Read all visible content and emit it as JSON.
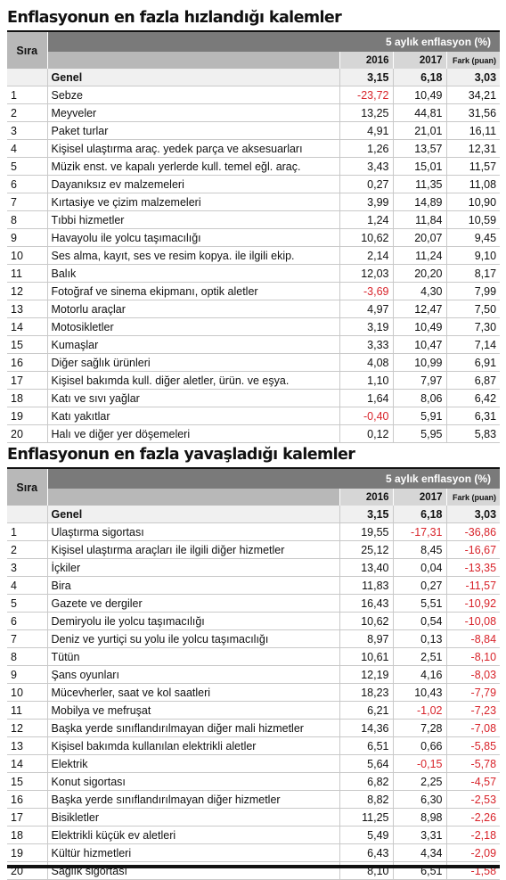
{
  "tables": [
    {
      "title": "Enflasyonun en fazla hızlandığı kalemler",
      "sira_header": "Sıra",
      "group_header": "5 aylık enflasyon (%)",
      "col_2016": "2016",
      "col_2017": "2017",
      "col_fark": "Fark (puan)",
      "genel": {
        "name": "Genel",
        "v2016": "3,15",
        "v2017": "6,18",
        "fark": "3,03"
      },
      "rows": [
        {
          "sira": "1",
          "name": "Sebze",
          "v2016": "-23,72",
          "v2017": "10,49",
          "fark": "34,21"
        },
        {
          "sira": "2",
          "name": "Meyveler",
          "v2016": "13,25",
          "v2017": "44,81",
          "fark": "31,56"
        },
        {
          "sira": "3",
          "name": "Paket turlar",
          "v2016": "4,91",
          "v2017": "21,01",
          "fark": "16,11"
        },
        {
          "sira": "4",
          "name": "Kişisel ulaştırma araç. yedek parça ve aksesuarları",
          "v2016": "1,26",
          "v2017": "13,57",
          "fark": "12,31"
        },
        {
          "sira": "5",
          "name": "Müzik enst. ve kapalı yerlerde kull. temel eğl. araç.",
          "v2016": "3,43",
          "v2017": "15,01",
          "fark": "11,57"
        },
        {
          "sira": "6",
          "name": "Dayanıksız ev malzemeleri",
          "v2016": "0,27",
          "v2017": "11,35",
          "fark": "11,08"
        },
        {
          "sira": "7",
          "name": "Kırtasiye ve çizim malzemeleri",
          "v2016": "3,99",
          "v2017": "14,89",
          "fark": "10,90"
        },
        {
          "sira": "8",
          "name": "Tıbbi hizmetler",
          "v2016": "1,24",
          "v2017": "11,84",
          "fark": "10,59"
        },
        {
          "sira": "9",
          "name": "Havayolu ile yolcu taşımacılığı",
          "v2016": "10,62",
          "v2017": "20,07",
          "fark": "9,45"
        },
        {
          "sira": "10",
          "name": "Ses alma, kayıt, ses ve resim kopya. ile ilgili ekip.",
          "v2016": "2,14",
          "v2017": "11,24",
          "fark": "9,10"
        },
        {
          "sira": "11",
          "name": "Balık",
          "v2016": "12,03",
          "v2017": "20,20",
          "fark": "8,17"
        },
        {
          "sira": "12",
          "name": "Fotoğraf ve sinema ekipmanı, optik aletler",
          "v2016": "-3,69",
          "v2017": "4,30",
          "fark": "7,99"
        },
        {
          "sira": "13",
          "name": "Motorlu araçlar",
          "v2016": "4,97",
          "v2017": "12,47",
          "fark": "7,50"
        },
        {
          "sira": "14",
          "name": "Motosikletler",
          "v2016": "3,19",
          "v2017": "10,49",
          "fark": "7,30"
        },
        {
          "sira": "15",
          "name": "Kumaşlar",
          "v2016": "3,33",
          "v2017": "10,47",
          "fark": "7,14"
        },
        {
          "sira": "16",
          "name": "Diğer sağlık ürünleri",
          "v2016": "4,08",
          "v2017": "10,99",
          "fark": "6,91"
        },
        {
          "sira": "17",
          "name": "Kişisel bakımda kull. diğer aletler, ürün. ve eşya.",
          "v2016": "1,10",
          "v2017": "7,97",
          "fark": "6,87"
        },
        {
          "sira": "18",
          "name": "Katı ve sıvı yağlar",
          "v2016": "1,64",
          "v2017": "8,06",
          "fark": "6,42"
        },
        {
          "sira": "19",
          "name": "Katı yakıtlar",
          "v2016": "-0,40",
          "v2017": "5,91",
          "fark": "6,31"
        },
        {
          "sira": "20",
          "name": "Halı ve diğer yer döşemeleri",
          "v2016": "0,12",
          "v2017": "5,95",
          "fark": "5,83"
        }
      ]
    },
    {
      "title": "Enflasyonun en fazla yavaşladığı kalemler",
      "sira_header": "Sıra",
      "group_header": "5 aylık enflasyon (%)",
      "col_2016": "2016",
      "col_2017": "2017",
      "col_fark": "Fark (puan)",
      "genel": {
        "name": "Genel",
        "v2016": "3,15",
        "v2017": "6,18",
        "fark": "3,03"
      },
      "rows": [
        {
          "sira": "1",
          "name": "Ulaştırma sigortası",
          "v2016": "19,55",
          "v2017": "-17,31",
          "fark": "-36,86"
        },
        {
          "sira": "2",
          "name": "Kişisel ulaştırma araçları ile ilgili diğer hizmetler",
          "v2016": "25,12",
          "v2017": "8,45",
          "fark": "-16,67"
        },
        {
          "sira": "3",
          "name": "İçkiler",
          "v2016": "13,40",
          "v2017": "0,04",
          "fark": "-13,35"
        },
        {
          "sira": "4",
          "name": "Bira",
          "v2016": "11,83",
          "v2017": "0,27",
          "fark": "-11,57"
        },
        {
          "sira": "5",
          "name": "Gazete ve dergiler",
          "v2016": "16,43",
          "v2017": "5,51",
          "fark": "-10,92"
        },
        {
          "sira": "6",
          "name": "Demiryolu ile yolcu taşımacılığı",
          "v2016": "10,62",
          "v2017": "0,54",
          "fark": "-10,08"
        },
        {
          "sira": "7",
          "name": "Deniz ve yurtiçi su yolu ile yolcu taşımacılığı",
          "v2016": "8,97",
          "v2017": "0,13",
          "fark": "-8,84"
        },
        {
          "sira": "8",
          "name": "Tütün",
          "v2016": "10,61",
          "v2017": "2,51",
          "fark": "-8,10"
        },
        {
          "sira": "9",
          "name": "Şans oyunları",
          "v2016": "12,19",
          "v2017": "4,16",
          "fark": "-8,03"
        },
        {
          "sira": "10",
          "name": "Mücevherler, saat ve kol saatleri",
          "v2016": "18,23",
          "v2017": "10,43",
          "fark": "-7,79"
        },
        {
          "sira": "11",
          "name": "Mobilya ve mefruşat",
          "v2016": "6,21",
          "v2017": "-1,02",
          "fark": "-7,23"
        },
        {
          "sira": "12",
          "name": "Başka yerde sınıflandırılmayan diğer mali hizmetler",
          "v2016": "14,36",
          "v2017": "7,28",
          "fark": "-7,08"
        },
        {
          "sira": "13",
          "name": "Kişisel bakımda kullanılan elektrikli aletler",
          "v2016": "6,51",
          "v2017": "0,66",
          "fark": "-5,85"
        },
        {
          "sira": "14",
          "name": "Elektrik",
          "v2016": "5,64",
          "v2017": "-0,15",
          "fark": "-5,78"
        },
        {
          "sira": "15",
          "name": "Konut sigortası",
          "v2016": "6,82",
          "v2017": "2,25",
          "fark": "-4,57"
        },
        {
          "sira": "16",
          "name": "Başka yerde sınıflandırılmayan diğer hizmetler",
          "v2016": "8,82",
          "v2017": "6,30",
          "fark": "-2,53"
        },
        {
          "sira": "17",
          "name": "Bisikletler",
          "v2016": "11,25",
          "v2017": "8,98",
          "fark": "-2,26"
        },
        {
          "sira": "18",
          "name": "Elektrikli küçük ev aletleri",
          "v2016": "5,49",
          "v2017": "3,31",
          "fark": "-2,18"
        },
        {
          "sira": "19",
          "name": "Kültür hizmetleri",
          "v2016": "6,43",
          "v2017": "4,34",
          "fark": "-2,09"
        },
        {
          "sira": "20",
          "name": "Sağlık sigortası",
          "v2016": "8,10",
          "v2017": "6,51",
          "fark": "-1,58"
        }
      ]
    }
  ]
}
